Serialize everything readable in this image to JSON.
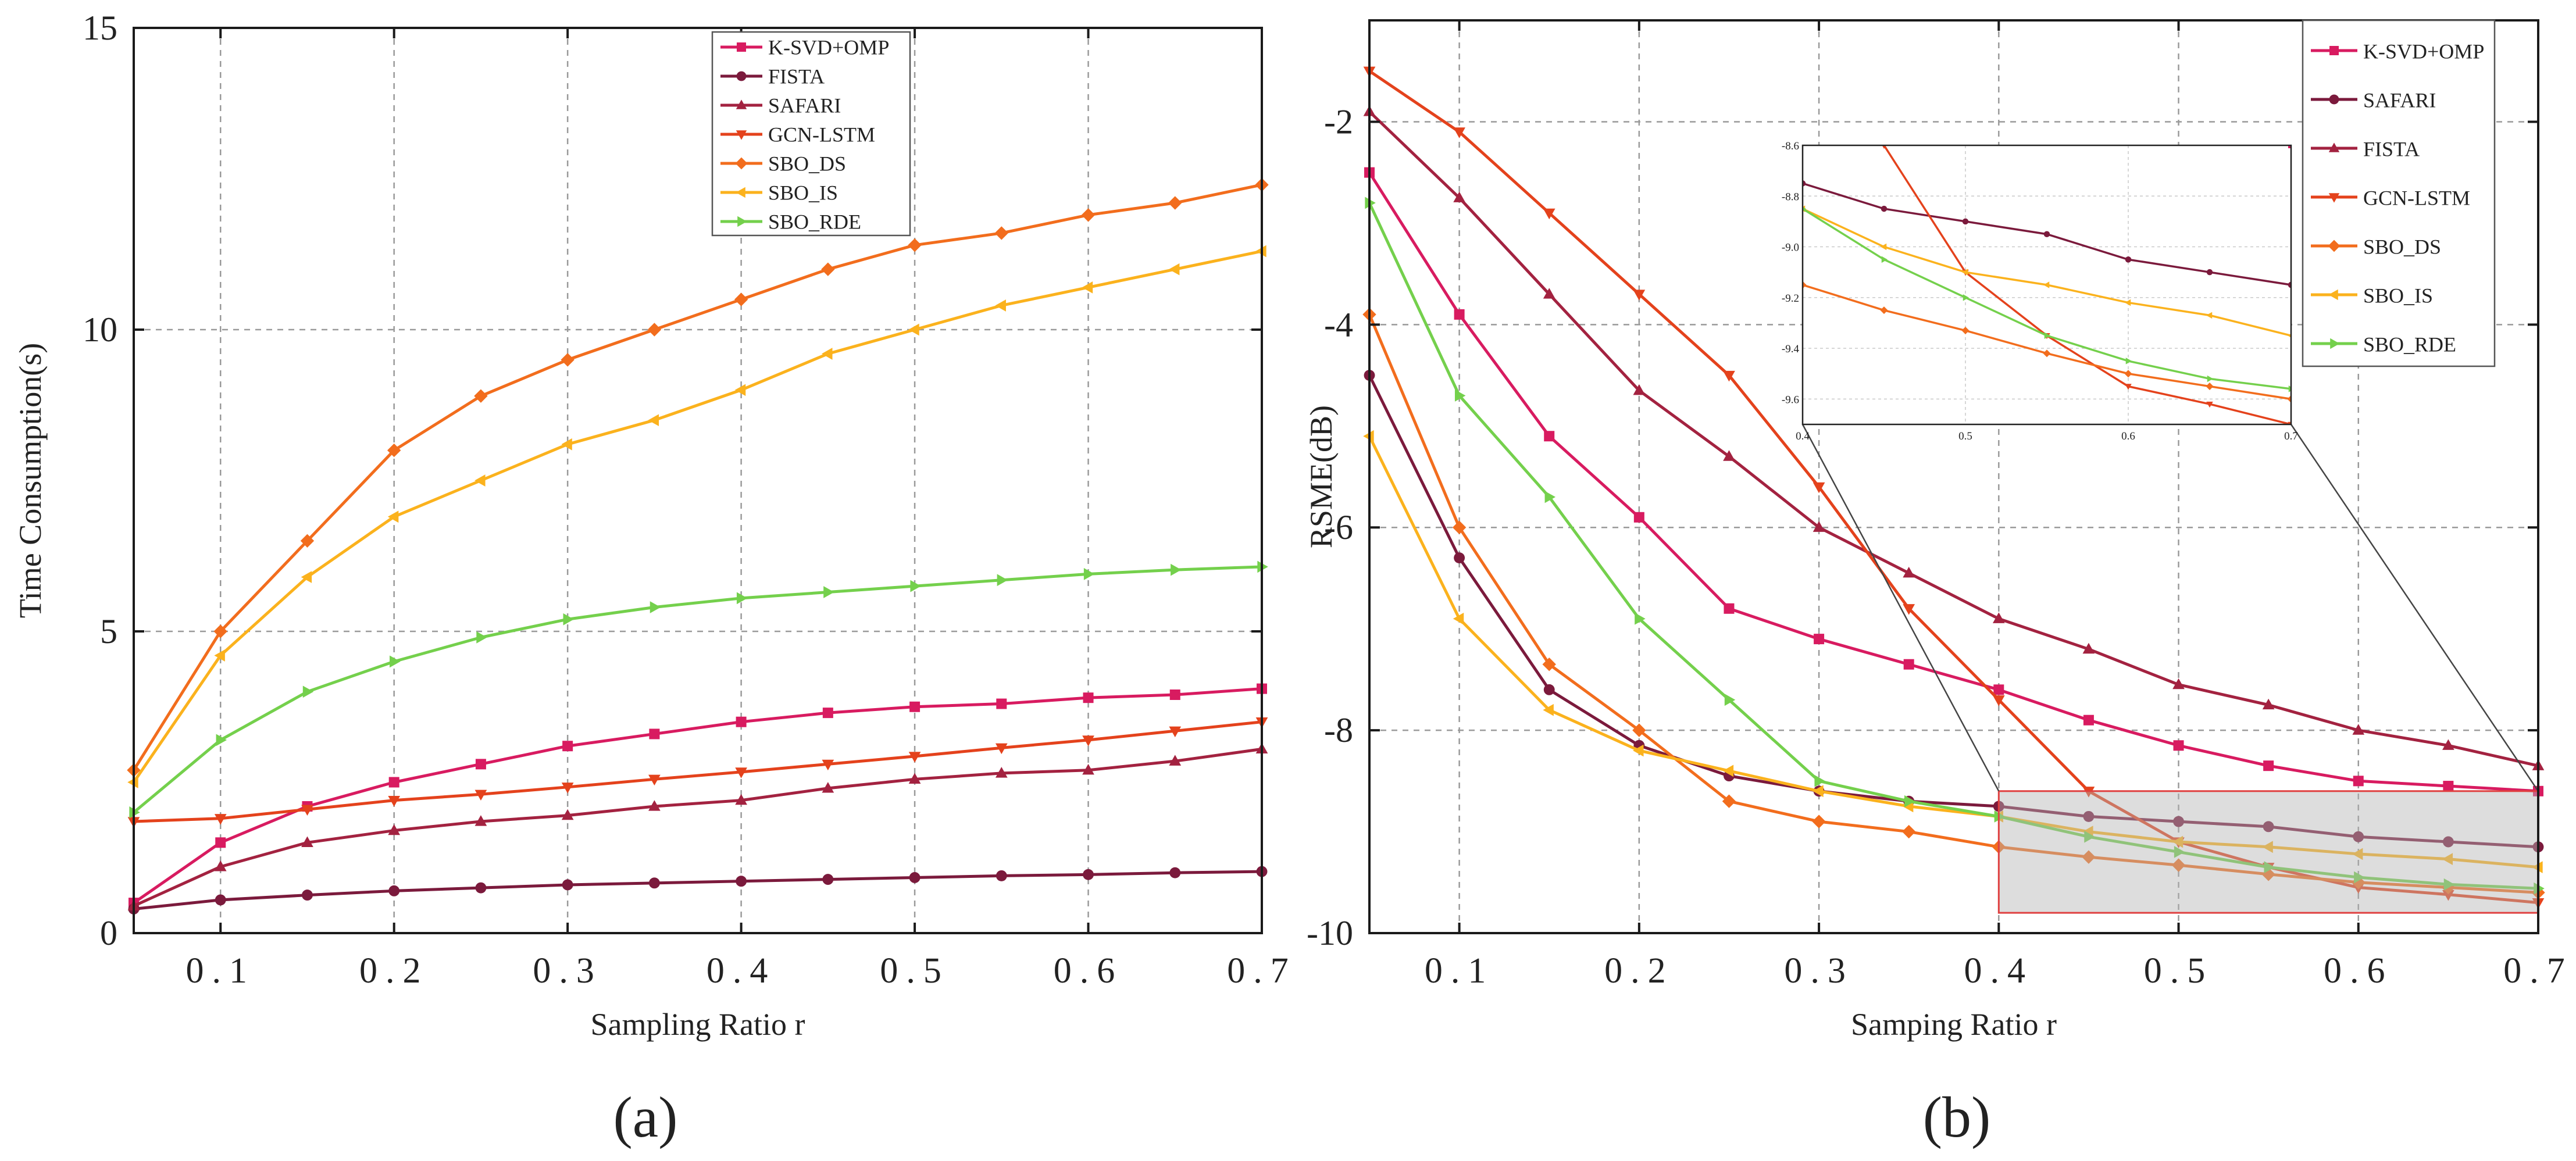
{
  "chart_data": [
    {
      "type": "line",
      "panel_label": "(a)",
      "xlabel": "Sampling Ratio r",
      "ylabel": "Time Consumption(s)",
      "xlim": [
        0.05,
        0.7
      ],
      "ylim": [
        0,
        15
      ],
      "xticks": [
        0.1,
        0.2,
        0.3,
        0.4,
        0.5,
        0.6,
        0.7
      ],
      "xtick_labels": [
        "0.1",
        "0.2",
        "0.3",
        "0.4",
        "0.5",
        "0.6",
        "0.7"
      ],
      "yticks": [
        0,
        5,
        10,
        15
      ],
      "ytick_labels": [
        "0",
        "5",
        "10",
        "15"
      ],
      "grid": true,
      "legend_position": "top-right",
      "x": [
        0.05,
        0.1,
        0.15,
        0.2,
        0.25,
        0.3,
        0.35,
        0.4,
        0.45,
        0.5,
        0.55,
        0.6,
        0.65,
        0.7
      ],
      "series": [
        {
          "name": "K-SVD+OMP",
          "color": "#d81b60",
          "marker": "square",
          "values": [
            0.5,
            1.5,
            2.1,
            2.5,
            2.8,
            3.1,
            3.3,
            3.5,
            3.65,
            3.75,
            3.8,
            3.9,
            3.95,
            4.05
          ]
        },
        {
          "name": "FISTA",
          "color": "#7b1a3c",
          "marker": "circle",
          "values": [
            0.4,
            0.55,
            0.63,
            0.7,
            0.75,
            0.8,
            0.83,
            0.86,
            0.89,
            0.92,
            0.95,
            0.97,
            1.0,
            1.02
          ]
        },
        {
          "name": "SAFARI",
          "color": "#a32240",
          "marker": "triangle-up",
          "values": [
            0.45,
            1.1,
            1.5,
            1.7,
            1.85,
            1.95,
            2.1,
            2.2,
            2.4,
            2.55,
            2.65,
            2.7,
            2.85,
            3.05
          ]
        },
        {
          "name": "GCN-LSTM",
          "color": "#e4421c",
          "marker": "triangle-down",
          "values": [
            1.85,
            1.9,
            2.05,
            2.2,
            2.3,
            2.42,
            2.55,
            2.67,
            2.8,
            2.93,
            3.07,
            3.2,
            3.35,
            3.5
          ]
        },
        {
          "name": "SBO_DS",
          "color": "#f26d1d",
          "marker": "diamond",
          "values": [
            2.7,
            5.0,
            6.5,
            8.0,
            8.9,
            9.5,
            10.0,
            10.5,
            11.0,
            11.4,
            11.6,
            11.9,
            12.1,
            12.4
          ]
        },
        {
          "name": "SBO_IS",
          "color": "#fbb21d",
          "marker": "triangle-left",
          "values": [
            2.5,
            4.6,
            5.9,
            6.9,
            7.5,
            8.1,
            8.5,
            9.0,
            9.6,
            10.0,
            10.4,
            10.7,
            11.0,
            11.3
          ]
        },
        {
          "name": "SBO_RDE",
          "color": "#74d04c",
          "marker": "triangle-right",
          "values": [
            2.0,
            3.2,
            4.0,
            4.5,
            4.9,
            5.2,
            5.4,
            5.55,
            5.65,
            5.75,
            5.85,
            5.95,
            6.02,
            6.07
          ]
        }
      ]
    },
    {
      "type": "line",
      "panel_label": "(b)",
      "xlabel": "Samping Ratio r",
      "ylabel": "RSME(dB)",
      "xlim": [
        0.05,
        0.7
      ],
      "ylim": [
        -10,
        -1
      ],
      "xticks": [
        0.1,
        0.2,
        0.3,
        0.4,
        0.5,
        0.6,
        0.7
      ],
      "xtick_labels": [
        "0.1",
        "0.2",
        "0.3",
        "0.4",
        "0.5",
        "0.6",
        "0.7"
      ],
      "yticks": [
        -10,
        -8,
        -6,
        -4,
        -2
      ],
      "ytick_labels": [
        "-10",
        "-8",
        "-6",
        "-4",
        "-2"
      ],
      "grid": true,
      "legend_position": "top-right",
      "x": [
        0.05,
        0.1,
        0.15,
        0.2,
        0.25,
        0.3,
        0.35,
        0.4,
        0.45,
        0.5,
        0.55,
        0.6,
        0.65,
        0.7
      ],
      "series": [
        {
          "name": "K-SVD+OMP",
          "color": "#d81b60",
          "marker": "square",
          "values": [
            -2.5,
            -3.9,
            -5.1,
            -5.9,
            -6.8,
            -7.1,
            -7.35,
            -7.6,
            -7.9,
            -8.15,
            -8.35,
            -8.5,
            -8.55,
            -8.6
          ]
        },
        {
          "name": "SAFARI",
          "color": "#7b1a3c",
          "marker": "circle",
          "values": [
            -4.5,
            -6.3,
            -7.6,
            -8.15,
            -8.45,
            -8.6,
            -8.7,
            -8.75,
            -8.85,
            -8.9,
            -8.95,
            -9.05,
            -9.1,
            -9.15
          ]
        },
        {
          "name": "FISTA",
          "color": "#a32240",
          "marker": "triangle-up",
          "values": [
            -1.9,
            -2.75,
            -3.7,
            -4.65,
            -5.3,
            -6.0,
            -6.45,
            -6.9,
            -7.2,
            -7.55,
            -7.75,
            -8.0,
            -8.15,
            -8.35
          ]
        },
        {
          "name": "GCN-LSTM",
          "color": "#e4421c",
          "marker": "triangle-down",
          "values": [
            -1.5,
            -2.1,
            -2.9,
            -3.7,
            -4.5,
            -5.6,
            -6.8,
            -7.7,
            -8.6,
            -9.1,
            -9.35,
            -9.55,
            -9.62,
            -9.7
          ]
        },
        {
          "name": "SBO_DS",
          "color": "#f26d1d",
          "marker": "diamond",
          "values": [
            -3.9,
            -6.0,
            -7.35,
            -8.0,
            -8.7,
            -8.9,
            -9.0,
            -9.15,
            -9.25,
            -9.33,
            -9.42,
            -9.5,
            -9.55,
            -9.6
          ]
        },
        {
          "name": "SBO_IS",
          "color": "#fbb21d",
          "marker": "triangle-left",
          "values": [
            -5.1,
            -6.9,
            -7.8,
            -8.2,
            -8.4,
            -8.6,
            -8.75,
            -8.85,
            -9.0,
            -9.1,
            -9.15,
            -9.22,
            -9.27,
            -9.35
          ]
        },
        {
          "name": "SBO_RDE",
          "color": "#74d04c",
          "marker": "triangle-right",
          "values": [
            -2.8,
            -4.7,
            -5.7,
            -6.9,
            -7.7,
            -8.5,
            -8.7,
            -8.85,
            -9.05,
            -9.2,
            -9.35,
            -9.45,
            -9.52,
            -9.56
          ]
        }
      ],
      "inset": {
        "description": "zoom of highlighted region",
        "xlim": [
          0.4,
          0.7
        ],
        "ylim": [
          -9.7,
          -8.6
        ],
        "xticks": [
          0.4,
          0.5,
          0.6,
          0.7
        ],
        "xtick_labels": [
          "0.4",
          "0.5",
          "0.6",
          "0.7"
        ],
        "yticks": [
          -8.6,
          -8.8,
          -9.0,
          -9.2,
          -9.4,
          -9.6
        ],
        "ytick_labels": [
          "-8.6",
          "-8.8",
          "-9.0",
          "-9.2",
          "-9.4",
          "-9.6"
        ],
        "highlight_region": {
          "x": [
            0.4,
            0.7
          ],
          "y": [
            -9.8,
            -8.6
          ]
        }
      }
    }
  ]
}
